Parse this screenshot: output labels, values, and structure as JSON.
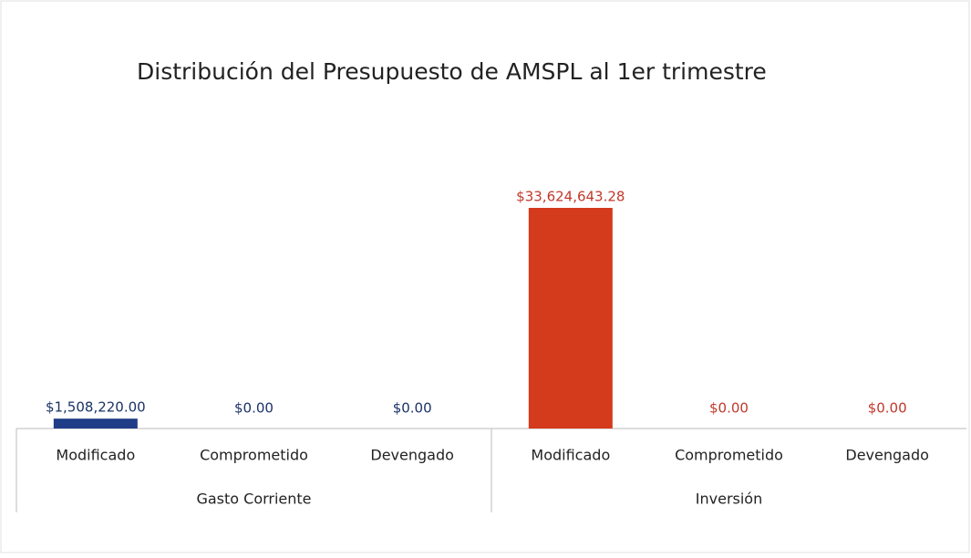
{
  "chart_data": {
    "type": "grouped-bar",
    "title": "Distribución del Presupuesto de AMSPL al 1er trimestre",
    "groups": [
      {
        "name": "Gasto Corriente",
        "color": "#1f3c88",
        "label_color": "#1a3366",
        "categories": [
          "Modificado",
          "Comprometido",
          "Devengado"
        ],
        "values": [
          1508220.0,
          0,
          0
        ],
        "value_labels": [
          "$1,508,220.00",
          "$0.00",
          "$0.00"
        ]
      },
      {
        "name": "Inversión",
        "color": "#d43a1c",
        "label_color": "#c0392b",
        "categories": [
          "Modificado",
          "Comprometido",
          "Devengado"
        ],
        "values": [
          33624643.28,
          0,
          0
        ],
        "value_labels": [
          "$33,624,643.28",
          "$0.00",
          "$0.00"
        ]
      }
    ]
  }
}
